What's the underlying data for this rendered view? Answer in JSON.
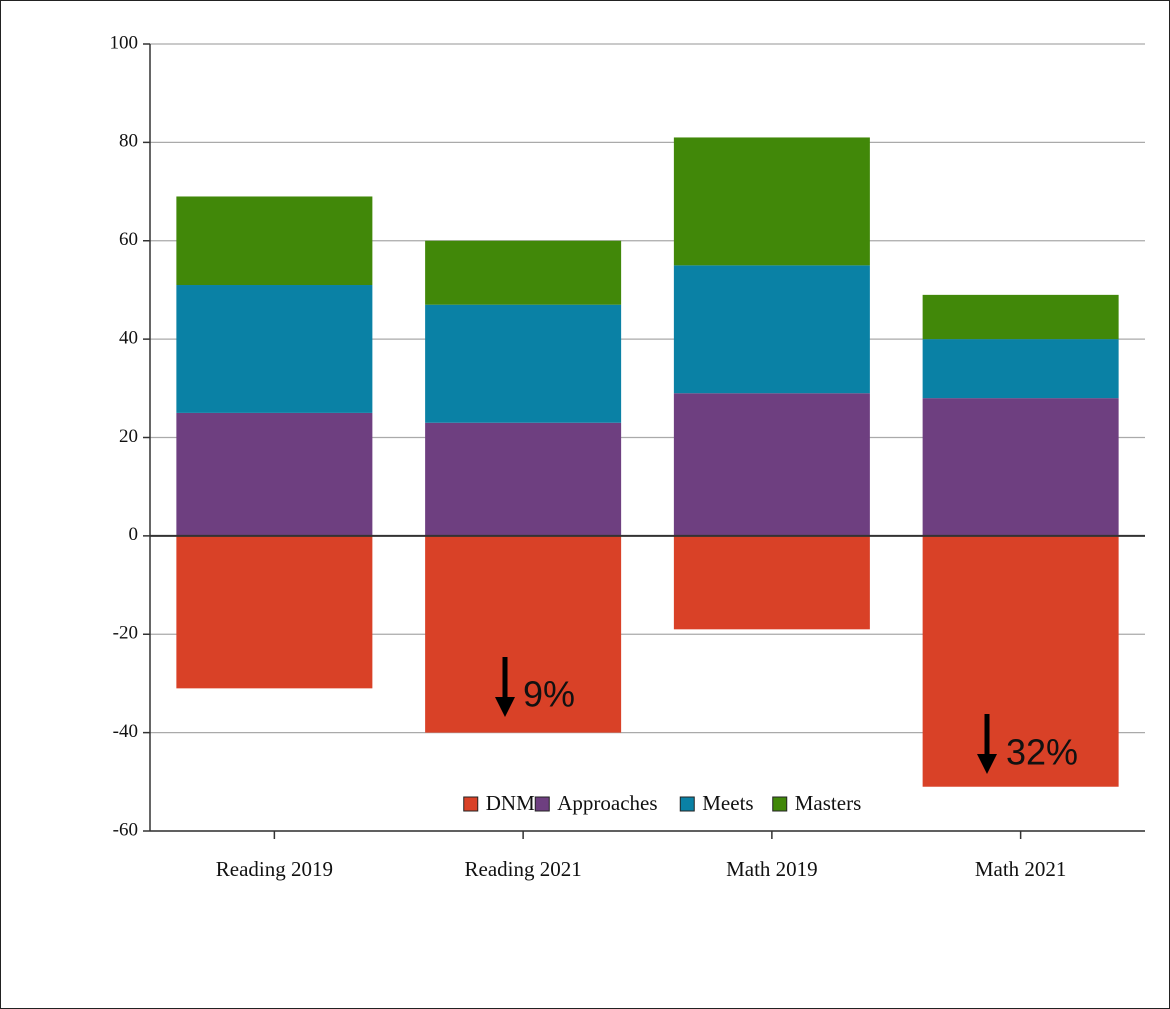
{
  "chart_data": {
    "type": "stacked-bar",
    "categories": [
      "Reading 2019",
      "Reading 2021",
      "Math 2019",
      "Math 2021"
    ],
    "series": [
      {
        "name": "DNM",
        "color": "#d94127",
        "values": [
          -31,
          -40,
          -19,
          -51
        ]
      },
      {
        "name": "Approaches",
        "color": "#6e3f80",
        "values": [
          25,
          23,
          29,
          28
        ]
      },
      {
        "name": "Meets",
        "color": "#0a81a5",
        "values": [
          26,
          24,
          26,
          12
        ]
      },
      {
        "name": "Masters",
        "color": "#418809",
        "values": [
          18,
          13,
          26,
          9
        ]
      }
    ],
    "ylim": [
      -60,
      100
    ],
    "yticks": [
      -60,
      -40,
      -20,
      0,
      20,
      40,
      60,
      80,
      100
    ],
    "grid": true,
    "annotations": [
      "9%",
      "32%"
    ]
  }
}
